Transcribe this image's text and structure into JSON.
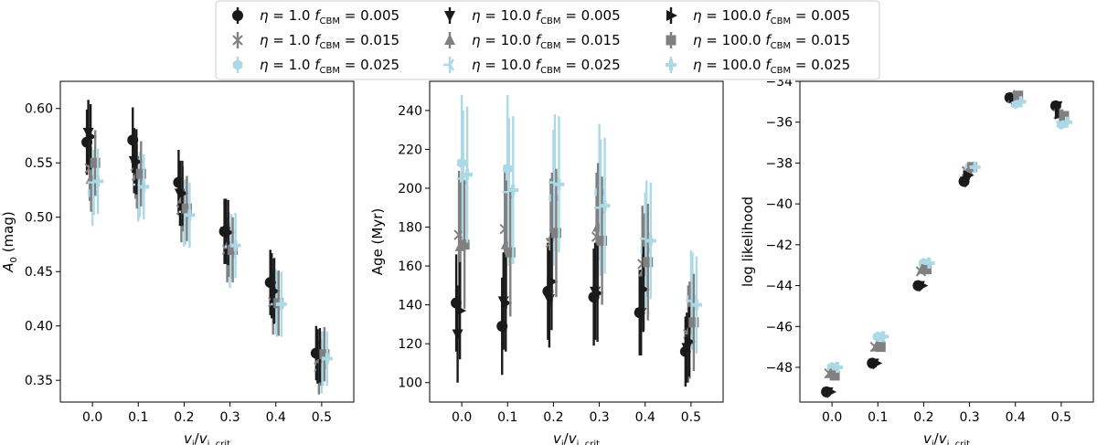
{
  "colors": {
    "black": "#1a1a1a",
    "grey": "#808080",
    "lightblue": "#add8e6"
  },
  "legend": {
    "location": "top-center",
    "columns": 3,
    "entries": [
      {
        "eta": "1.0",
        "fcbm": "0.005",
        "marker": "circle",
        "color": "black"
      },
      {
        "eta": "1.0",
        "fcbm": "0.015",
        "marker": "x",
        "color": "grey"
      },
      {
        "eta": "1.0",
        "fcbm": "0.025",
        "marker": "hexagon",
        "color": "lightblue"
      },
      {
        "eta": "10.0",
        "fcbm": "0.005",
        "marker": "triangle-down",
        "color": "black"
      },
      {
        "eta": "10.0",
        "fcbm": "0.015",
        "marker": "triangle-up",
        "color": "grey"
      },
      {
        "eta": "10.0",
        "fcbm": "0.025",
        "marker": "tri-left",
        "color": "lightblue"
      },
      {
        "eta": "100.0",
        "fcbm": "0.005",
        "marker": "triangle-right",
        "color": "black"
      },
      {
        "eta": "100.0",
        "fcbm": "0.015",
        "marker": "square",
        "color": "grey"
      },
      {
        "eta": "100.0",
        "fcbm": "0.025",
        "marker": "plus",
        "color": "lightblue"
      }
    ]
  },
  "chart_data": [
    {
      "type": "scatter",
      "title": "",
      "xlabel": "v_i/v_i,crit",
      "ylabel": "A_0 (mag)",
      "xlim": [
        -0.07,
        0.57
      ],
      "ylim": [
        0.33,
        0.625
      ],
      "xticks": [
        "0.0",
        "0.1",
        "0.2",
        "0.3",
        "0.4",
        "0.5"
      ],
      "yticks": [
        "0.35",
        "0.40",
        "0.45",
        "0.50",
        "0.55",
        "0.60"
      ],
      "x": [
        0.0,
        0.1,
        0.2,
        0.3,
        0.4,
        0.5
      ],
      "series": [
        {
          "values": [
            0.569,
            0.571,
            0.532,
            0.487,
            0.44,
            0.375
          ],
          "err": [
            0.03,
            0.03,
            0.03,
            0.03,
            0.03,
            0.025
          ]
        },
        {
          "values": [
            0.545,
            0.547,
            0.507,
            0.47,
            0.422,
            0.362
          ],
          "err": [
            0.03,
            0.03,
            0.03,
            0.03,
            0.03,
            0.025
          ]
        },
        {
          "values": [
            0.522,
            0.526,
            0.503,
            0.465,
            0.422,
            0.363
          ],
          "err": [
            0.03,
            0.03,
            0.03,
            0.03,
            0.03,
            0.025
          ]
        },
        {
          "values": [
            0.578,
            0.552,
            0.522,
            0.487,
            0.437,
            0.372
          ],
          "err": [
            0.03,
            0.03,
            0.03,
            0.03,
            0.03,
            0.025
          ]
        },
        {
          "values": [
            0.535,
            0.538,
            0.517,
            0.475,
            0.433,
            0.37
          ],
          "err": [
            0.03,
            0.03,
            0.03,
            0.03,
            0.03,
            0.025
          ]
        },
        {
          "values": [
            0.532,
            0.53,
            0.505,
            0.473,
            0.42,
            0.37
          ],
          "err": [
            0.03,
            0.03,
            0.03,
            0.03,
            0.03,
            0.025
          ]
        },
        {
          "values": [
            0.574,
            0.551,
            0.522,
            0.486,
            0.432,
            0.373
          ],
          "err": [
            0.03,
            0.03,
            0.03,
            0.03,
            0.03,
            0.025
          ]
        },
        {
          "values": [
            0.55,
            0.54,
            0.508,
            0.47,
            0.421,
            0.374
          ],
          "err": [
            0.03,
            0.03,
            0.03,
            0.03,
            0.03,
            0.025
          ]
        },
        {
          "values": [
            0.533,
            0.528,
            0.502,
            0.474,
            0.42,
            0.37
          ],
          "err": [
            0.03,
            0.03,
            0.03,
            0.03,
            0.03,
            0.025
          ]
        }
      ]
    },
    {
      "type": "scatter",
      "title": "",
      "xlabel": "v_i/v_i,crit",
      "ylabel": "Age (Myr)",
      "xlim": [
        -0.07,
        0.57
      ],
      "ylim": [
        90,
        255
      ],
      "xticks": [
        "0.0",
        "0.1",
        "0.2",
        "0.3",
        "0.4",
        "0.5"
      ],
      "yticks": [
        "100",
        "120",
        "140",
        "160",
        "180",
        "200",
        "220",
        "240"
      ],
      "x": [
        0.0,
        0.1,
        0.2,
        0.3,
        0.4,
        0.5
      ],
      "series": [
        {
          "values": [
            141,
            129,
            147,
            144,
            136,
            116
          ],
          "err": [
            25,
            25,
            25,
            25,
            22,
            18
          ]
        },
        {
          "values": [
            176,
            179,
            172,
            175,
            161,
            125
          ],
          "err": [
            33,
            33,
            33,
            33,
            30,
            25
          ]
        },
        {
          "values": [
            213,
            210,
            195,
            198,
            168,
            143
          ],
          "err": [
            35,
            38,
            35,
            35,
            30,
            25
          ]
        },
        {
          "values": [
            125,
            142,
            143,
            147,
            136,
            118
          ],
          "err": [
            25,
            25,
            25,
            25,
            22,
            18
          ]
        },
        {
          "values": [
            170,
            171,
            175,
            180,
            157,
            127
          ],
          "err": [
            33,
            33,
            33,
            33,
            30,
            25
          ]
        },
        {
          "values": [
            205,
            198,
            203,
            190,
            174,
            142
          ],
          "err": [
            35,
            38,
            35,
            35,
            30,
            25
          ]
        },
        {
          "values": [
            137,
            141,
            152,
            146,
            148,
            121
          ],
          "err": [
            25,
            25,
            25,
            25,
            22,
            18
          ]
        },
        {
          "values": [
            171,
            167,
            177,
            173,
            162,
            131
          ],
          "err": [
            33,
            33,
            33,
            33,
            30,
            25
          ]
        },
        {
          "values": [
            207,
            199,
            202,
            191,
            173,
            140
          ],
          "err": [
            35,
            38,
            35,
            35,
            30,
            25
          ]
        }
      ]
    },
    {
      "type": "scatter",
      "title": "",
      "xlabel": "v_i/v_i,crit",
      "ylabel": "log likelihood",
      "xlim": [
        -0.07,
        0.57
      ],
      "ylim": [
        -49.7,
        -34.0
      ],
      "xticks": [
        "0.0",
        "0.1",
        "0.2",
        "0.3",
        "0.4",
        "0.5"
      ],
      "yticks": [
        "-48",
        "-46",
        "-44",
        "-42",
        "-40",
        "-38",
        "-36",
        "-34"
      ],
      "x": [
        0.0,
        0.1,
        0.2,
        0.3,
        0.4,
        0.5
      ],
      "series": [
        {
          "values": [
            -49.2,
            -47.8,
            -44.0,
            -38.9,
            -34.8,
            -35.2
          ],
          "err": [
            0.12,
            0.12,
            0.12,
            0.12,
            0.12,
            0.12
          ]
        },
        {
          "values": [
            -48.3,
            -47.0,
            -43.3,
            -38.4,
            -34.8,
            -35.6
          ],
          "err": [
            0.12,
            0.12,
            0.12,
            0.12,
            0.12,
            0.12
          ]
        },
        {
          "values": [
            -48.0,
            -46.5,
            -42.9,
            -38.2,
            -35.1,
            -36.1
          ],
          "err": [
            0.12,
            0.12,
            0.12,
            0.12,
            0.12,
            0.12
          ]
        },
        {
          "values": [
            -49.2,
            -47.8,
            -44.0,
            -38.9,
            -34.8,
            -35.2
          ],
          "err": [
            0.12,
            0.12,
            0.12,
            0.12,
            0.12,
            0.12
          ]
        },
        {
          "values": [
            -48.3,
            -47.0,
            -43.2,
            -38.4,
            -34.7,
            -35.6
          ],
          "err": [
            0.12,
            0.12,
            0.12,
            0.12,
            0.12,
            0.12
          ]
        },
        {
          "values": [
            -48.0,
            -46.5,
            -42.9,
            -38.2,
            -35.0,
            -36.0
          ],
          "err": [
            0.12,
            0.12,
            0.12,
            0.12,
            0.12,
            0.12
          ]
        },
        {
          "values": [
            -49.2,
            -47.8,
            -44.0,
            -38.6,
            -34.8,
            -35.6
          ],
          "err": [
            0.12,
            0.12,
            0.12,
            0.12,
            0.12,
            0.12
          ]
        },
        {
          "values": [
            -48.4,
            -47.0,
            -43.2,
            -38.2,
            -34.7,
            -35.7
          ],
          "err": [
            0.12,
            0.12,
            0.12,
            0.12,
            0.12,
            0.12
          ]
        },
        {
          "values": [
            -48.0,
            -46.5,
            -42.9,
            -38.2,
            -35.0,
            -36.0
          ],
          "err": [
            0.12,
            0.12,
            0.12,
            0.12,
            0.12,
            0.12
          ]
        }
      ]
    }
  ]
}
